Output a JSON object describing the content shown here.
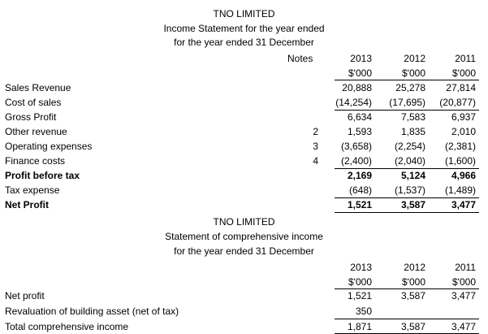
{
  "income_statement": {
    "company": "TNO LIMITED",
    "title": "Income Statement for the year ended",
    "subtitle": "for the year ended 31 December",
    "notes_header": "Notes",
    "years": [
      "2013",
      "2012",
      "2011"
    ],
    "units": [
      "$'000",
      "$'000",
      "$'000"
    ],
    "rows": [
      {
        "label": "Sales Revenue",
        "note": "",
        "values": [
          "20,888",
          "25,278",
          "27,814"
        ],
        "bold": false
      },
      {
        "label": "Cost of sales",
        "note": "",
        "values": [
          "(14,254)",
          "(17,695)",
          "(20,877)"
        ],
        "bold": false
      },
      {
        "label": "Gross Profit",
        "note": "",
        "values": [
          "6,634",
          "7,583",
          "6,937"
        ],
        "bold": false
      },
      {
        "label": "Other revenue",
        "note": "2",
        "values": [
          "1,593",
          "1,835",
          "2,010"
        ],
        "bold": false
      },
      {
        "label": "Operating expenses",
        "note": "3",
        "values": [
          "(3,658)",
          "(2,254)",
          "(2,381)"
        ],
        "bold": false
      },
      {
        "label": "Finance costs",
        "note": "4",
        "values": [
          "(2,400)",
          "(2,040)",
          "(1,600)"
        ],
        "bold": false
      },
      {
        "label": "Profit before tax",
        "note": "",
        "values": [
          "2,169",
          "5,124",
          "4,966"
        ],
        "bold": true
      },
      {
        "label": "Tax expense",
        "note": "",
        "values": [
          "(648)",
          "(1,537)",
          "(1,489)"
        ],
        "bold": false
      },
      {
        "label": "Net Profit",
        "note": "",
        "values": [
          "1,521",
          "3,587",
          "3,477"
        ],
        "bold": true
      }
    ]
  },
  "comprehensive_income": {
    "company": "TNO LIMITED",
    "title": "Statement of comprehensive income",
    "subtitle": "for the year ended 31 December",
    "years": [
      "2013",
      "2012",
      "2011"
    ],
    "units": [
      "$'000",
      "$'000",
      "$'000"
    ],
    "rows": [
      {
        "label": "Net profit",
        "values": [
          "1,521",
          "3,587",
          "3,477"
        ]
      },
      {
        "label": "Revaluation of building asset (net of tax)",
        "values": [
          "350",
          "",
          ""
        ]
      },
      {
        "label": "Total comprehensive income",
        "values": [
          "1,871",
          "3,587",
          "3,477"
        ]
      }
    ]
  }
}
